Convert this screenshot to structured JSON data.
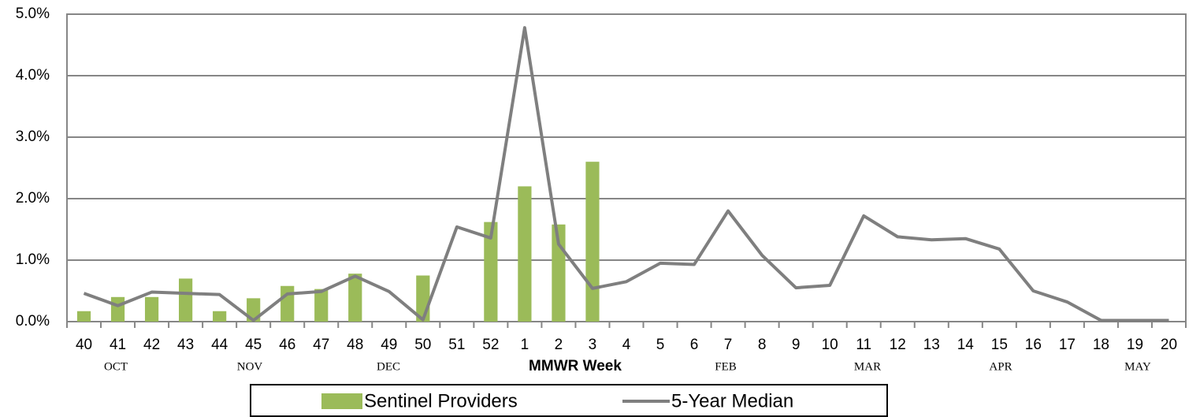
{
  "chart_data": {
    "type": "bar-line",
    "x_label": "MMWR Week",
    "categories": [
      "40",
      "41",
      "42",
      "43",
      "44",
      "45",
      "46",
      "47",
      "48",
      "49",
      "50",
      "51",
      "52",
      "1",
      "2",
      "3",
      "4",
      "5",
      "6",
      "7",
      "8",
      "9",
      "10",
      "11",
      "12",
      "13",
      "14",
      "15",
      "16",
      "17",
      "18",
      "19",
      "20"
    ],
    "month_labels": [
      "OCT",
      "NOV",
      "DEC",
      "FEB",
      "MAR",
      "APR",
      "MAY"
    ],
    "series": [
      {
        "name": "Sentinel Providers",
        "type": "bar",
        "color": "#9bbb59",
        "values": [
          0.17,
          0.4,
          0.4,
          0.7,
          0.17,
          0.38,
          0.58,
          0.53,
          0.78,
          null,
          0.75,
          null,
          1.62,
          2.2,
          1.58,
          2.6,
          null,
          null,
          null,
          null,
          null,
          null,
          null,
          null,
          null,
          null,
          null,
          null,
          null,
          null,
          null,
          null,
          null
        ]
      },
      {
        "name": "5-Year Median",
        "type": "line",
        "color": "#7f7f7f",
        "values": [
          0.46,
          0.26,
          0.48,
          0.46,
          0.44,
          0.02,
          0.45,
          0.49,
          0.74,
          0.49,
          0.03,
          1.54,
          1.36,
          4.78,
          1.26,
          0.54,
          0.65,
          0.95,
          0.93,
          1.8,
          1.08,
          0.55,
          0.59,
          1.72,
          1.38,
          1.33,
          1.35,
          1.18,
          0.5,
          0.32,
          0.02,
          0.02,
          0.02
        ]
      }
    ],
    "ylim": [
      0,
      5
    ],
    "yticks": [
      {
        "value": 0,
        "label": "0.0%"
      },
      {
        "value": 1,
        "label": "1.0%"
      },
      {
        "value": 2,
        "label": "2.0%"
      },
      {
        "value": 3,
        "label": "3.0%"
      },
      {
        "value": 4,
        "label": "4.0%"
      },
      {
        "value": 5,
        "label": "5.0%"
      }
    ],
    "grid": true
  }
}
